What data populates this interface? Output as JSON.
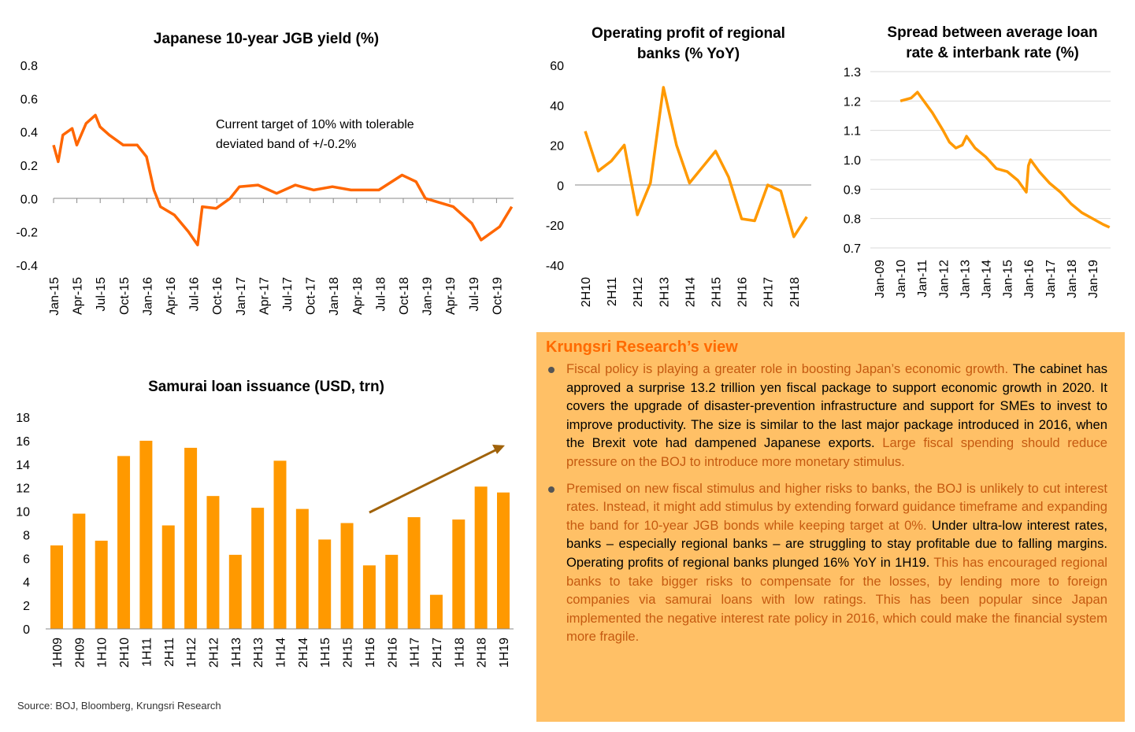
{
  "colors": {
    "line": "#FF6600",
    "line2": "#FF9900",
    "bar": "#FF9900",
    "arrow": "#A0620A",
    "panel": "#FFC066",
    "title": "#FF6A00",
    "emph": "#C55A11"
  },
  "chart_data": [
    {
      "id": "jgb",
      "type": "line",
      "title": "Japanese 10-year JGB yield (%)",
      "ylim": [
        -0.4,
        0.8
      ],
      "yticks": [
        "0.8",
        "0.6",
        "0.4",
        "0.2",
        "0.0",
        "-0.2",
        "-0.4"
      ],
      "xticks": [
        "Jan-15",
        "Apr-15",
        "Jul-15",
        "Oct-15",
        "Jan-16",
        "Apr-16",
        "Jul-16",
        "Oct-16",
        "Jan-17",
        "Apr-17",
        "Jul-17",
        "Oct-17",
        "Jan-18",
        "Apr-18",
        "Jul-18",
        "Oct-18",
        "Jan-19",
        "Apr-19",
        "Jul-19",
        "Oct-19"
      ],
      "annotation": [
        "Current target of 10% with tolerable",
        "deviated band of +/-0.2%"
      ],
      "x": [
        2015.0,
        2015.05,
        2015.1,
        2015.2,
        2015.25,
        2015.35,
        2015.45,
        2015.5,
        2015.6,
        2015.75,
        2015.9,
        2016.0,
        2016.08,
        2016.15,
        2016.3,
        2016.45,
        2016.55,
        2016.6,
        2016.75,
        2016.9,
        2017.0,
        2017.2,
        2017.4,
        2017.6,
        2017.8,
        2018.0,
        2018.2,
        2018.5,
        2018.75,
        2018.9,
        2019.0,
        2019.3,
        2019.5,
        2019.6,
        2019.8,
        2019.93
      ],
      "y": [
        0.32,
        0.22,
        0.38,
        0.42,
        0.32,
        0.45,
        0.5,
        0.43,
        0.38,
        0.32,
        0.32,
        0.25,
        0.05,
        -0.05,
        -0.1,
        -0.2,
        -0.28,
        -0.05,
        -0.06,
        0.0,
        0.07,
        0.08,
        0.03,
        0.08,
        0.05,
        0.07,
        0.05,
        0.05,
        0.14,
        0.1,
        0.0,
        -0.05,
        -0.15,
        -0.25,
        -0.17,
        -0.05
      ]
    },
    {
      "id": "profit",
      "type": "line",
      "title": [
        "Operating profit of regional",
        "banks (% YoY)"
      ],
      "ylim": [
        -40,
        60
      ],
      "yticks": [
        "60",
        "40",
        "20",
        "0",
        "-20",
        "-40"
      ],
      "categories": [
        "2H10",
        "1H11",
        "2H11",
        "1H12",
        "2H12",
        "1H13",
        "2H13",
        "1H14",
        "2H14",
        "1H15",
        "2H15",
        "1H16",
        "2H16",
        "1H17",
        "2H17",
        "1H18",
        "2H18",
        "1H19"
      ],
      "xticks": [
        "2H10",
        "2H11",
        "2H12",
        "2H13",
        "2H14",
        "2H15",
        "2H16",
        "2H17",
        "2H18"
      ],
      "values": [
        27,
        7,
        12,
        20,
        -15,
        1,
        49,
        20,
        1,
        9,
        17,
        4,
        -17,
        -18,
        0,
        -3,
        -26,
        -16
      ]
    },
    {
      "id": "spread",
      "type": "line",
      "title": [
        "Spread between average loan",
        "rate & interbank rate (%)"
      ],
      "ylim": [
        0.7,
        1.3
      ],
      "yticks": [
        "1.3",
        "1.2",
        "1.1",
        "1.0",
        "0.9",
        "0.8",
        "0.7"
      ],
      "xticks": [
        "Jan-09",
        "Jan-10",
        "Jan-11",
        "Jan-12",
        "Jan-13",
        "Jan-14",
        "Jan-15",
        "Jan-16",
        "Jan-17",
        "Jan-18",
        "Jan-19"
      ],
      "x": [
        2010.0,
        2010.5,
        2010.8,
        2011.0,
        2011.5,
        2012.0,
        2012.3,
        2012.6,
        2012.9,
        2013.1,
        2013.5,
        2014.0,
        2014.5,
        2015.0,
        2015.5,
        2015.9,
        2016.0,
        2016.1,
        2016.5,
        2017.0,
        2017.5,
        2018.0,
        2018.5,
        2019.0,
        2019.5,
        2019.8
      ],
      "y": [
        1.2,
        1.21,
        1.23,
        1.21,
        1.16,
        1.1,
        1.06,
        1.04,
        1.05,
        1.08,
        1.04,
        1.01,
        0.97,
        0.96,
        0.93,
        0.89,
        0.98,
        1.0,
        0.96,
        0.92,
        0.89,
        0.85,
        0.82,
        0.8,
        0.78,
        0.77
      ]
    },
    {
      "id": "samurai",
      "type": "bar",
      "title": "Samurai loan issuance (USD, trn)",
      "ylim": [
        0,
        18
      ],
      "yticks": [
        "18",
        "16",
        "14",
        "12",
        "10",
        "8",
        "6",
        "4",
        "2",
        "0"
      ],
      "categories": [
        "1H09",
        "2H09",
        "1H10",
        "2H10",
        "1H11",
        "2H11",
        "1H12",
        "2H12",
        "1H13",
        "2H13",
        "1H14",
        "2H14",
        "1H15",
        "2H15",
        "1H16",
        "2H16",
        "1H17",
        "2H17",
        "1H18",
        "2H18",
        "1H19"
      ],
      "values": [
        7.1,
        9.8,
        7.5,
        14.7,
        16.0,
        8.8,
        15.4,
        11.3,
        6.3,
        10.3,
        14.3,
        10.2,
        7.6,
        9.0,
        5.4,
        6.3,
        9.5,
        2.9,
        9.3,
        12.1,
        11.6
      ],
      "trend_arrow": {
        "from": [
          "1H16",
          9.9
        ],
        "to": [
          "1H19",
          15.6
        ]
      }
    }
  ],
  "view": {
    "title": "Krungsri Research’s view",
    "bullets": [
      [
        {
          "t": "Fiscal policy is playing a greater role in boosting Japan’s economic growth.",
          "c": "o"
        },
        {
          "t": " The cabinet has approved a surprise 13.2 trillion yen fiscal package to support economic growth in 2020. It covers the upgrade of disaster-prevention infrastructure and support for SMEs to invest to improve productivity. The size is similar to the last major package introduced in 2016, when the Brexit vote had dampened Japanese exports.",
          "c": "k"
        },
        {
          "t": " Large fiscal spending should reduce pressure on the BOJ to introduce more monetary stimulus.",
          "c": "o"
        }
      ],
      [
        {
          "t": "Premised on new fiscal stimulus and higher risks to banks, the BOJ is unlikely to cut interest rates. Instead, it might add stimulus by extending forward guidance timeframe and expanding the band for 10-year JGB bonds while keeping target at 0%.",
          "c": "o"
        },
        {
          "t": " Under ultra-low interest rates, banks – especially regional banks – are struggling to stay profitable due to falling margins. Operating profits of regional banks plunged 16% YoY in 1H19.",
          "c": "k"
        },
        {
          "t": " This has encouraged regional banks to take bigger risks to compensate for the losses, by lending more to foreign companies via samurai loans with low ratings. This has been popular since Japan implemented the negative interest rate policy in 2016, which could make the financial system more fragile.",
          "c": "o"
        }
      ]
    ]
  },
  "source": "Source: BOJ, Bloomberg, Krungsri Research"
}
